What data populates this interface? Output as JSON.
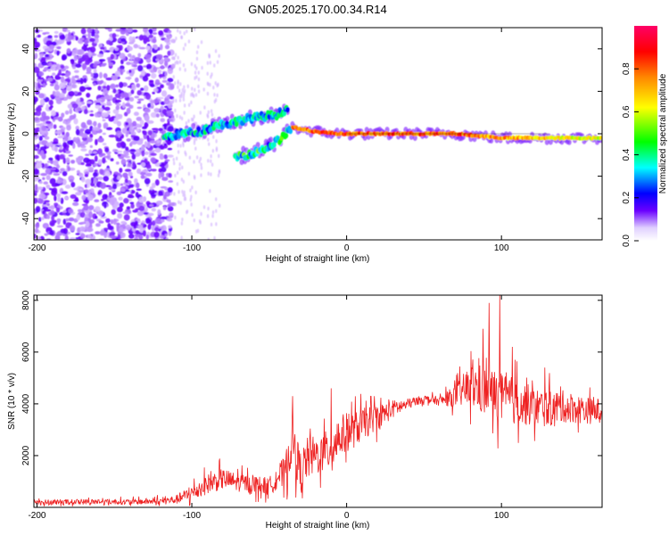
{
  "title": "GN05.2025.170.00.34.R14",
  "chart_data": [
    {
      "type": "heatmap",
      "xlabel": "Height of straight line (km)",
      "ylabel": "Frequency (Hz)",
      "xlim": [
        -202,
        165
      ],
      "ylim": [
        -50,
        50
      ],
      "xticks": [
        -200,
        -100,
        0,
        100
      ],
      "yticks": [
        -40,
        -20,
        0,
        20,
        40
      ],
      "colorbar": {
        "label": "Normalized spectral amplitude",
        "range": [
          0,
          1
        ],
        "ticks": [
          0.0,
          0.2,
          0.4,
          0.6,
          0.8
        ],
        "tick_labels": [
          "0.0",
          "0.2",
          "0.4",
          "0.6",
          "0.8"
        ],
        "colormap": [
          "#ffffff",
          "#6a00ff",
          "#0000ff",
          "#00ffff",
          "#00ff00",
          "#ffff00",
          "#ff8800",
          "#ff0000",
          "#ff0066"
        ]
      },
      "features": [
        {
          "segment": "diffuse noise",
          "x_range": [
            -202,
            -112
          ],
          "y_range": [
            -50,
            50
          ],
          "amplitude": 0.05
        },
        {
          "segment": "branch A",
          "points": [
            [
              -118,
              -2
            ],
            [
              -108,
              0
            ],
            [
              -95,
              1
            ],
            [
              -85,
              4
            ],
            [
              -75,
              5
            ],
            [
              -65,
              7
            ],
            [
              -55,
              8
            ],
            [
              -45,
              9
            ],
            [
              -38,
              12
            ]
          ],
          "amplitude": 0.35
        },
        {
          "segment": "branch B",
          "points": [
            [
              -72,
              -11
            ],
            [
              -60,
              -9
            ],
            [
              -50,
              -6
            ],
            [
              -42,
              -2
            ],
            [
              -36,
              2
            ]
          ],
          "amplitude": 0.4
        },
        {
          "segment": "main line",
          "points": [
            [
              -35,
              3
            ],
            [
              -20,
              1
            ],
            [
              -5,
              0
            ],
            [
              10,
              0
            ],
            [
              40,
              0
            ],
            [
              70,
              0
            ],
            [
              100,
              -2
            ],
            [
              130,
              -2
            ],
            [
              165,
              -2
            ]
          ],
          "amplitude": 0.85
        }
      ]
    },
    {
      "type": "line",
      "xlabel": "Height of straight line (km)",
      "ylabel": "SNR (10 * v/v)",
      "xlim": [
        -202,
        165
      ],
      "ylim": [
        0,
        8200
      ],
      "xticks": [
        -200,
        -100,
        0,
        100
      ],
      "yticks": [
        2000,
        4000,
        6000,
        8000
      ],
      "line_color": "#ee2222",
      "series": [
        {
          "x": [
            -200,
            -180,
            -160,
            -140,
            -120,
            -110,
            -100,
            -90,
            -80,
            -70,
            -60,
            -50,
            -45,
            -40,
            -35,
            -30,
            -25,
            -20,
            -15,
            -10,
            -5,
            0,
            5,
            10,
            20,
            30,
            40,
            50,
            60,
            70,
            80,
            90,
            100,
            110,
            120,
            130,
            140,
            150,
            160,
            165
          ],
          "values": [
            200,
            210,
            220,
            210,
            240,
            300,
            550,
            900,
            1100,
            950,
            900,
            800,
            1200,
            1300,
            2600,
            1400,
            1900,
            2000,
            2100,
            2300,
            2700,
            2900,
            3000,
            3200,
            3500,
            3800,
            4000,
            4200,
            4100,
            4300,
            4700,
            4500,
            4200,
            4100,
            3900,
            3800,
            3900,
            3800,
            3700,
            3800
          ],
          "spread": [
            150,
            150,
            150,
            150,
            200,
            250,
            450,
            550,
            600,
            500,
            500,
            500,
            700,
            900,
            1300,
            1100,
            1200,
            1100,
            1100,
            1200,
            1200,
            1100,
            1000,
            900,
            700,
            500,
            300,
            200,
            250,
            600,
            1200,
            1500,
            1400,
            1300,
            1100,
            1000,
            900,
            800,
            700,
            700
          ]
        }
      ],
      "peaks": [
        {
          "x": -35,
          "y": 4300
        },
        {
          "x": -10,
          "y": 4600
        },
        {
          "x": 88,
          "y": 6900
        },
        {
          "x": 92,
          "y": 7900
        },
        {
          "x": 99,
          "y": 8200
        },
        {
          "x": 107,
          "y": 6200
        },
        {
          "x": 128,
          "y": 5400
        }
      ]
    }
  ]
}
